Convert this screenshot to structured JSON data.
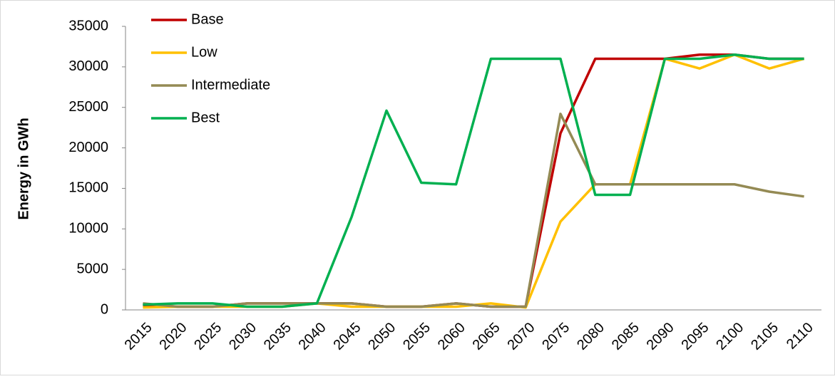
{
  "chart_data": {
    "type": "line",
    "y_label": "Energy in GWh",
    "categories": [
      "2015",
      "2020",
      "2025",
      "2030",
      "2035",
      "2040",
      "2045",
      "2050",
      "2055",
      "2060",
      "2065",
      "2070",
      "2075",
      "2080",
      "2085",
      "2090",
      "2095",
      "2100",
      "2105",
      "2110"
    ],
    "series": [
      {
        "name": "Base",
        "color": "#c00000",
        "values": [
          600,
          400,
          400,
          800,
          800,
          800,
          800,
          400,
          400,
          800,
          400,
          400,
          21800,
          31000,
          31000,
          31000,
          31500,
          31500,
          31000,
          31000
        ]
      },
      {
        "name": "Low",
        "color": "#ffc000",
        "values": [
          300,
          400,
          400,
          400,
          400,
          800,
          400,
          400,
          400,
          400,
          800,
          300,
          10900,
          15500,
          15500,
          31000,
          29800,
          31500,
          29800,
          31000
        ]
      },
      {
        "name": "Intermediate",
        "color": "#948a54",
        "values": [
          800,
          400,
          400,
          800,
          800,
          800,
          800,
          400,
          400,
          800,
          400,
          400,
          24200,
          15500,
          15500,
          15500,
          15500,
          15500,
          14600,
          14000
        ]
      },
      {
        "name": "Best",
        "color": "#00b050",
        "values": [
          650,
          800,
          800,
          400,
          400,
          800,
          11500,
          24600,
          15700,
          15500,
          31000,
          31000,
          31000,
          14200,
          14200,
          31000,
          31000,
          31500,
          31000,
          31000
        ]
      }
    ],
    "ylim": [
      0,
      35000
    ],
    "yticks": [
      0,
      5000,
      10000,
      15000,
      20000,
      25000,
      30000,
      35000
    ],
    "legend": "top-left"
  }
}
